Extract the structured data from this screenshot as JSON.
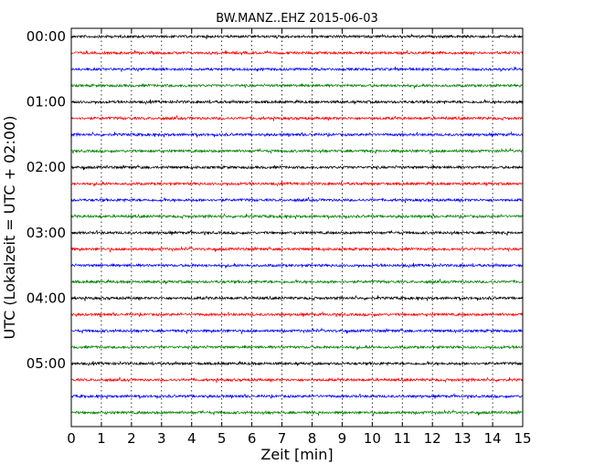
{
  "chart_data": {
    "type": "line",
    "title": "BW.MANZ..EHZ 2015-06-03",
    "xlabel": "Zeit  [min]",
    "ylabel": "UTC (Lokalzeit = UTC + 02:00)",
    "xlim": [
      0,
      15
    ],
    "x_ticks": [
      "0",
      "1",
      "2",
      "3",
      "4",
      "5",
      "6",
      "7",
      "8",
      "9",
      "10",
      "11",
      "12",
      "13",
      "14",
      "15"
    ],
    "y_ticks": [
      "00:00",
      "01:00",
      "02:00",
      "03:00",
      "04:00",
      "05:00"
    ],
    "grid": "vertical dotted",
    "trace_interval_min": 15,
    "trace_count": 24,
    "trace_colors": [
      "#000000",
      "#ff0000",
      "#0000ff",
      "#008000"
    ],
    "station": "BW.MANZ..EHZ",
    "date": "2015-06-03"
  }
}
